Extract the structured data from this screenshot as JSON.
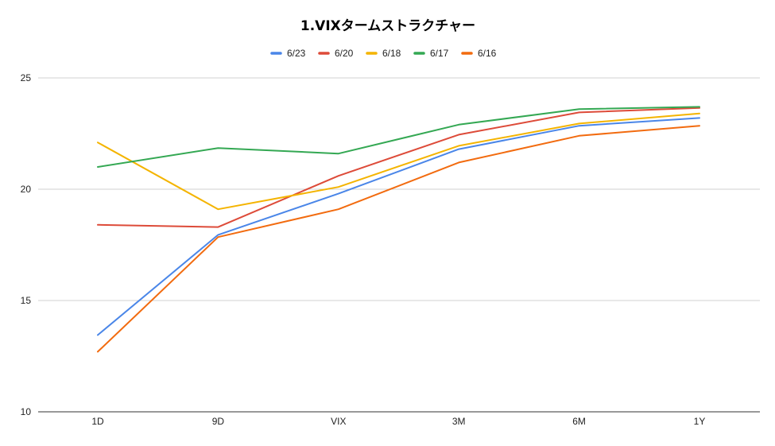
{
  "chart_data": {
    "type": "line",
    "title": "1.VIXタームストラクチャー",
    "xlabel": "",
    "ylabel": "",
    "categories": [
      "1D",
      "9D",
      "VIX",
      "3M",
      "6M",
      "1Y"
    ],
    "ylim": [
      10,
      25
    ],
    "yticks": [
      10,
      15,
      20,
      25
    ],
    "grid": true,
    "legend_position": "top",
    "series": [
      {
        "name": "6/23",
        "color": "#4a86e8",
        "values": [
          13.45,
          17.95,
          19.8,
          21.8,
          22.85,
          23.2
        ]
      },
      {
        "name": "6/20",
        "color": "#dd4b39",
        "values": [
          18.4,
          18.3,
          20.6,
          22.45,
          23.45,
          23.65
        ]
      },
      {
        "name": "6/18",
        "color": "#f4b400",
        "values": [
          22.1,
          19.1,
          20.1,
          21.95,
          22.95,
          23.4
        ]
      },
      {
        "name": "6/17",
        "color": "#34a853",
        "values": [
          21.0,
          21.85,
          21.6,
          22.9,
          23.6,
          23.7
        ]
      },
      {
        "name": "6/16",
        "color": "#f26b0f",
        "values": [
          12.7,
          17.85,
          19.1,
          21.2,
          22.4,
          22.85
        ]
      }
    ]
  }
}
